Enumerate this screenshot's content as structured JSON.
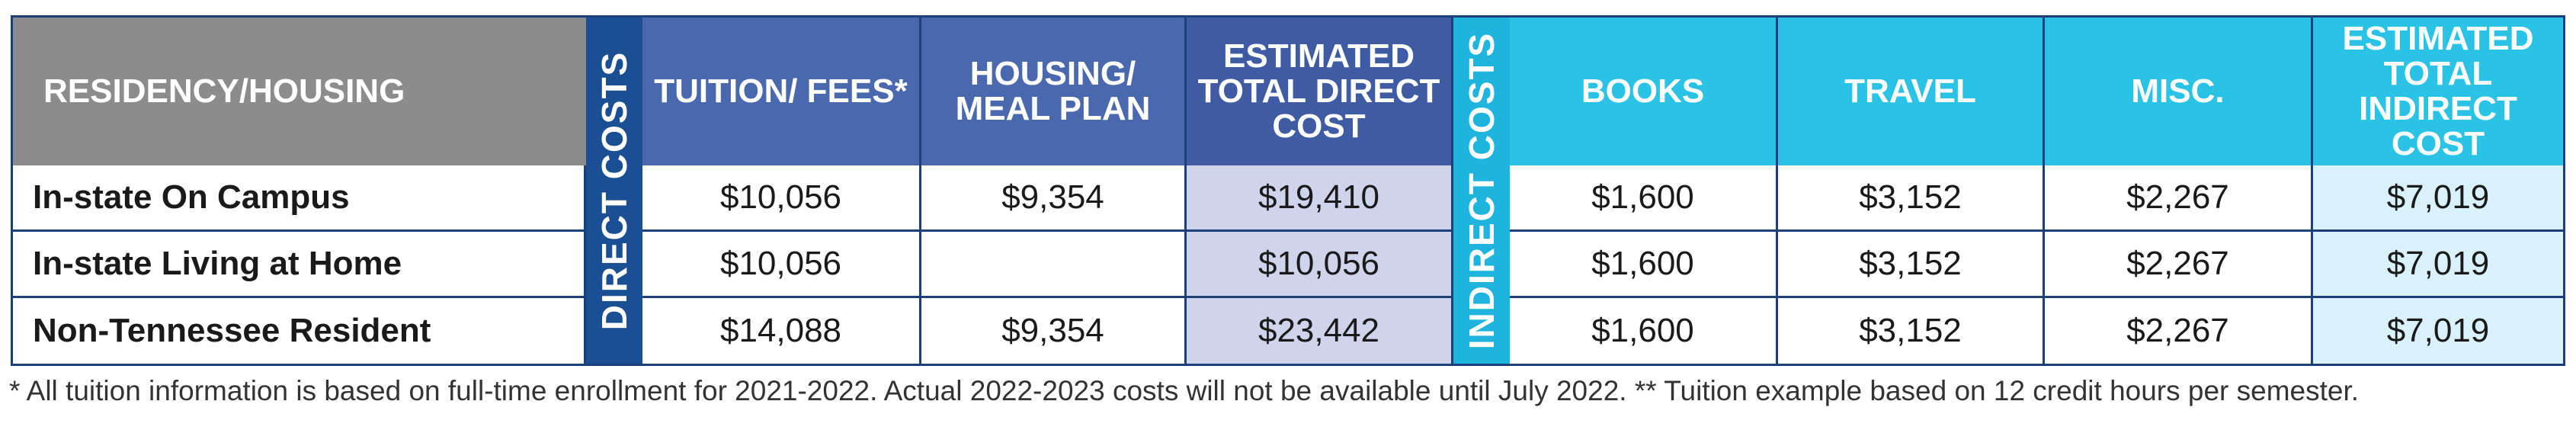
{
  "headers": {
    "residency": "RESIDENCY/HOUSING",
    "direct_band": "DIRECT COSTS",
    "tuition": "TUITION/ FEES*",
    "housing": "HOUSING/ MEAL PLAN",
    "total_direct": "ESTIMATED TOTAL DIRECT COST",
    "indirect_band": "INDIRECT COSTS",
    "books": "BOOKS",
    "travel": "TRAVEL",
    "misc": "MISC.",
    "total_indirect": "ESTIMATED TOTAL INDIRECT COST"
  },
  "rows": [
    {
      "label": "In-state On Campus",
      "tuition": "$10,056",
      "housing": "$9,354",
      "total_direct": "$19,410",
      "books": "$1,600",
      "travel": "$3,152",
      "misc": "$2,267",
      "total_indirect": "$7,019"
    },
    {
      "label": "In-state Living at Home",
      "tuition": "$10,056",
      "housing": "",
      "total_direct": "$10,056",
      "books": "$1,600",
      "travel": "$3,152",
      "misc": "$2,267",
      "total_indirect": "$7,019"
    },
    {
      "label": "Non-Tennessee Resident",
      "tuition": "$14,088",
      "housing": "$9,354",
      "total_direct": "$23,442",
      "books": "$1,600",
      "travel": "$3,152",
      "misc": "$2,267",
      "total_indirect": "$7,019"
    }
  ],
  "footnote": "* All tuition information is based on full-time enrollment for 2021-2022. Actual 2022-2023 costs will not be available until July 2022. ** Tuition example based on 12 credit hours per semester.",
  "colors": {
    "header_gray": "#8c8c8c",
    "header_blue": "#4a68ad",
    "direct_band": "#1b4f94",
    "indirect_band": "#1fb4de",
    "header_cyan": "#2ac3e6",
    "total_direct_shade": "#cfd3ec",
    "total_indirect_shade": "#d8f1fa"
  }
}
